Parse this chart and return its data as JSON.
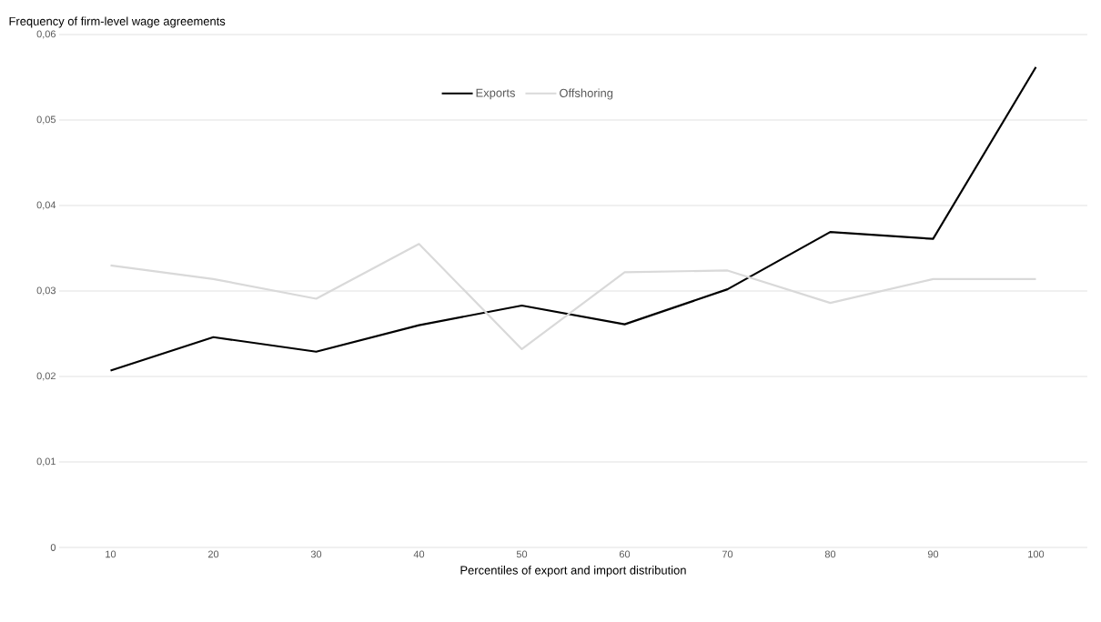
{
  "chart_data": {
    "type": "line",
    "ylabel": "Frequency of firm-level wage agreements",
    "xlabel": "Percentiles of export and import distribution",
    "categories": [
      "10",
      "20",
      "30",
      "40",
      "50",
      "60",
      "70",
      "80",
      "90",
      "100"
    ],
    "series": [
      {
        "name": "Exports",
        "color": "#000000",
        "values": [
          0.0207,
          0.0246,
          0.0229,
          0.026,
          0.0283,
          0.0261,
          0.0302,
          0.0369,
          0.0361,
          0.0562
        ]
      },
      {
        "name": "Offshoring",
        "color": "#d9d9d9",
        "values": [
          0.033,
          0.0314,
          0.0291,
          0.0355,
          0.0232,
          0.0322,
          0.0324,
          0.0286,
          0.0314,
          0.0314
        ]
      }
    ],
    "ylim": [
      0,
      0.06
    ],
    "yticks": [
      {
        "value": 0,
        "label": "0"
      },
      {
        "value": 0.01,
        "label": "0,01"
      },
      {
        "value": 0.02,
        "label": "0,02"
      },
      {
        "value": 0.03,
        "label": "0,03"
      },
      {
        "value": 0.04,
        "label": "0,04"
      },
      {
        "value": 0.05,
        "label": "0,05"
      },
      {
        "value": 0.06,
        "label": "0,06"
      }
    ],
    "grid": "y",
    "legend": "top",
    "marker": "none",
    "line_style": "solid"
  }
}
